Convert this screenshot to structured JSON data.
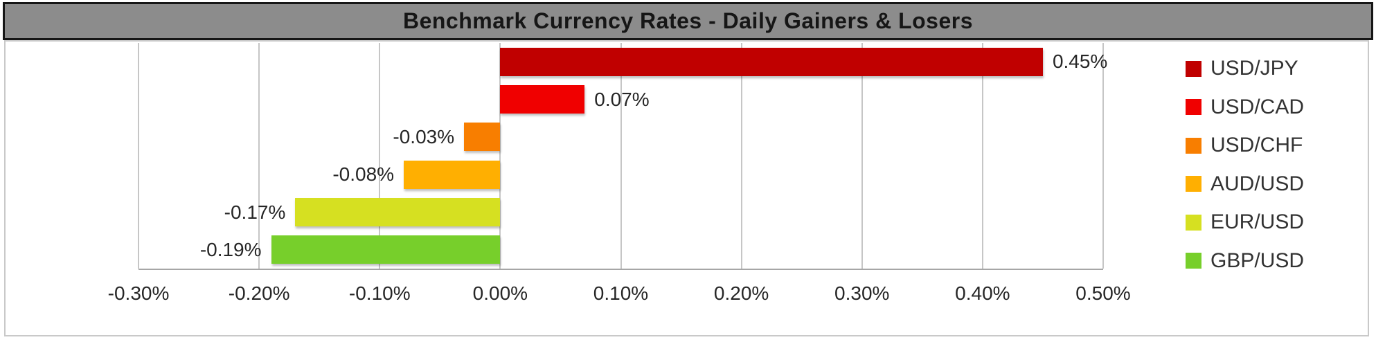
{
  "title": "Benchmark Currency Rates - Daily Gainers & Losers",
  "chart_data": {
    "type": "bar",
    "orientation": "horizontal",
    "title": "Benchmark Currency Rates - Daily Gainers & Losers",
    "categories": [
      "USD/JPY",
      "USD/CAD",
      "USD/CHF",
      "AUD/USD",
      "EUR/USD",
      "GBP/USD"
    ],
    "values": [
      0.45,
      0.07,
      -0.03,
      -0.08,
      -0.17,
      -0.19
    ],
    "value_labels": [
      "0.45%",
      "0.07%",
      "-0.03%",
      "-0.08%",
      "-0.17%",
      "-0.19%"
    ],
    "colors": [
      "#c00000",
      "#f00000",
      "#f87e00",
      "#ffaf01",
      "#d6e021",
      "#77cf2b"
    ],
    "x_axis": {
      "min": -0.3,
      "max": 0.5,
      "step": 0.1,
      "tick_labels": [
        "-0.30%",
        "-0.20%",
        "-0.10%",
        "0.00%",
        "0.10%",
        "0.20%",
        "0.30%",
        "0.40%",
        "0.50%"
      ]
    },
    "legend": {
      "position": "right",
      "entries": [
        "USD/JPY",
        "USD/CAD",
        "USD/CHF",
        "AUD/USD",
        "EUR/USD",
        "GBP/USD"
      ]
    },
    "grid": true,
    "style": {
      "title_bg": "#8c8c8c",
      "title_color": "#161616",
      "gridline_color": "#c6c6c6",
      "label_color": "#262626",
      "legend_text_color": "#333333",
      "plot_bg": "#ffffff"
    }
  }
}
